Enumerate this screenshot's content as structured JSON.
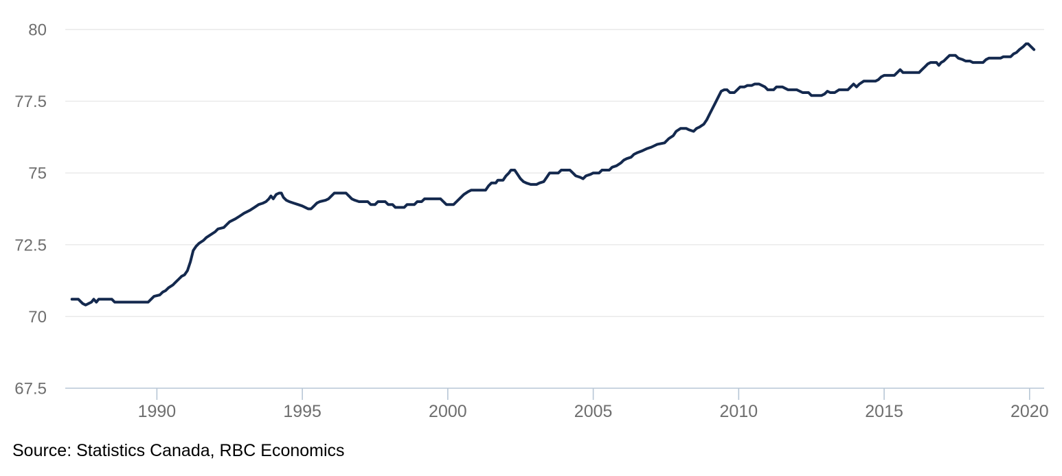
{
  "source_note": "Source: Statistics Canada, RBC Economics",
  "chart_data": {
    "type": "line",
    "title": "",
    "xlabel": "",
    "ylabel": "",
    "grid": true,
    "legend": "none",
    "xlim": [
      1986.85,
      2020.5
    ],
    "ylim": [
      67.5,
      80
    ],
    "x_tick_values": [
      1990,
      1995,
      2000,
      2005,
      2010,
      2015,
      2020
    ],
    "x_tick_labels": [
      "1990",
      "1995",
      "2000",
      "2005",
      "2010",
      "2015",
      "2020"
    ],
    "y_tick_values": [
      67.5,
      70,
      72.5,
      75,
      77.5,
      80
    ],
    "y_tick_labels": [
      "67.5",
      "70",
      "72.5",
      "75",
      "77.5",
      "80"
    ],
    "colors": {
      "line": "#14294E",
      "grid": "#E8E8E8",
      "axis": "#B7C6D5",
      "tick_text": "#6E6E6E",
      "source_text": "#000000"
    },
    "series": [
      {
        "name": "series-1",
        "points": [
          [
            1987.08,
            70.6
          ],
          [
            1987.3,
            70.6
          ],
          [
            1987.45,
            70.45
          ],
          [
            1987.55,
            70.4
          ],
          [
            1987.65,
            70.45
          ],
          [
            1987.75,
            70.5
          ],
          [
            1987.83,
            70.6
          ],
          [
            1987.92,
            70.5
          ],
          [
            1988.0,
            70.6
          ],
          [
            1988.45,
            70.6
          ],
          [
            1988.55,
            70.5
          ],
          [
            1989.7,
            70.5
          ],
          [
            1989.8,
            70.6
          ],
          [
            1989.9,
            70.7
          ],
          [
            1990.1,
            70.75
          ],
          [
            1990.2,
            70.85
          ],
          [
            1990.3,
            70.9
          ],
          [
            1990.4,
            71.0
          ],
          [
            1990.55,
            71.1
          ],
          [
            1990.65,
            71.2
          ],
          [
            1990.75,
            71.3
          ],
          [
            1990.85,
            71.4
          ],
          [
            1990.95,
            71.45
          ],
          [
            1991.05,
            71.6
          ],
          [
            1991.15,
            71.9
          ],
          [
            1991.25,
            72.3
          ],
          [
            1991.35,
            72.45
          ],
          [
            1991.45,
            72.55
          ],
          [
            1991.6,
            72.65
          ],
          [
            1991.7,
            72.75
          ],
          [
            1991.85,
            72.85
          ],
          [
            1992.0,
            72.95
          ],
          [
            1992.1,
            73.05
          ],
          [
            1992.3,
            73.1
          ],
          [
            1992.4,
            73.2
          ],
          [
            1992.5,
            73.3
          ],
          [
            1992.6,
            73.35
          ],
          [
            1992.7,
            73.4
          ],
          [
            1992.85,
            73.5
          ],
          [
            1993.0,
            73.6
          ],
          [
            1993.1,
            73.65
          ],
          [
            1993.2,
            73.7
          ],
          [
            1993.35,
            73.8
          ],
          [
            1993.5,
            73.9
          ],
          [
            1993.65,
            73.95
          ],
          [
            1993.75,
            74.0
          ],
          [
            1993.85,
            74.1
          ],
          [
            1993.92,
            74.2
          ],
          [
            1994.0,
            74.1
          ],
          [
            1994.1,
            74.25
          ],
          [
            1994.2,
            74.3
          ],
          [
            1994.28,
            74.3
          ],
          [
            1994.35,
            74.15
          ],
          [
            1994.45,
            74.05
          ],
          [
            1994.55,
            74.0
          ],
          [
            1994.7,
            73.95
          ],
          [
            1994.85,
            73.9
          ],
          [
            1995.0,
            73.85
          ],
          [
            1995.1,
            73.8
          ],
          [
            1995.2,
            73.75
          ],
          [
            1995.3,
            73.75
          ],
          [
            1995.4,
            73.85
          ],
          [
            1995.5,
            73.95
          ],
          [
            1995.6,
            74.0
          ],
          [
            1995.8,
            74.05
          ],
          [
            1995.9,
            74.1
          ],
          [
            1996.0,
            74.2
          ],
          [
            1996.1,
            74.3
          ],
          [
            1996.5,
            74.3
          ],
          [
            1996.6,
            74.2
          ],
          [
            1996.7,
            74.1
          ],
          [
            1996.8,
            74.05
          ],
          [
            1996.95,
            74.0
          ],
          [
            1997.25,
            74.0
          ],
          [
            1997.35,
            73.9
          ],
          [
            1997.5,
            73.9
          ],
          [
            1997.6,
            74.0
          ],
          [
            1997.85,
            74.0
          ],
          [
            1997.95,
            73.9
          ],
          [
            1998.1,
            73.9
          ],
          [
            1998.2,
            73.8
          ],
          [
            1998.5,
            73.8
          ],
          [
            1998.6,
            73.9
          ],
          [
            1998.85,
            73.9
          ],
          [
            1998.95,
            74.0
          ],
          [
            1999.1,
            74.0
          ],
          [
            1999.2,
            74.1
          ],
          [
            1999.75,
            74.1
          ],
          [
            1999.85,
            74.0
          ],
          [
            1999.95,
            73.9
          ],
          [
            2000.2,
            73.9
          ],
          [
            2000.3,
            74.0
          ],
          [
            2000.45,
            74.15
          ],
          [
            2000.55,
            74.25
          ],
          [
            2000.7,
            74.35
          ],
          [
            2000.8,
            74.4
          ],
          [
            2001.3,
            74.4
          ],
          [
            2001.4,
            74.55
          ],
          [
            2001.5,
            74.65
          ],
          [
            2001.65,
            74.65
          ],
          [
            2001.72,
            74.75
          ],
          [
            2001.9,
            74.75
          ],
          [
            2002.0,
            74.9
          ],
          [
            2002.1,
            75.0
          ],
          [
            2002.17,
            75.1
          ],
          [
            2002.3,
            75.1
          ],
          [
            2002.4,
            74.95
          ],
          [
            2002.5,
            74.8
          ],
          [
            2002.6,
            74.7
          ],
          [
            2002.7,
            74.65
          ],
          [
            2002.85,
            74.6
          ],
          [
            2003.05,
            74.6
          ],
          [
            2003.15,
            74.65
          ],
          [
            2003.3,
            74.7
          ],
          [
            2003.4,
            74.85
          ],
          [
            2003.5,
            75.0
          ],
          [
            2003.8,
            75.0
          ],
          [
            2003.9,
            75.1
          ],
          [
            2004.2,
            75.1
          ],
          [
            2004.3,
            75.0
          ],
          [
            2004.4,
            74.9
          ],
          [
            2004.55,
            74.85
          ],
          [
            2004.65,
            74.8
          ],
          [
            2004.75,
            74.9
          ],
          [
            2004.9,
            74.95
          ],
          [
            2005.0,
            75.0
          ],
          [
            2005.2,
            75.0
          ],
          [
            2005.3,
            75.1
          ],
          [
            2005.55,
            75.1
          ],
          [
            2005.65,
            75.2
          ],
          [
            2005.8,
            75.25
          ],
          [
            2005.95,
            75.35
          ],
          [
            2006.05,
            75.45
          ],
          [
            2006.15,
            75.5
          ],
          [
            2006.3,
            75.55
          ],
          [
            2006.4,
            75.65
          ],
          [
            2006.5,
            75.7
          ],
          [
            2006.7,
            75.78
          ],
          [
            2006.85,
            75.85
          ],
          [
            2007.0,
            75.9
          ],
          [
            2007.1,
            75.95
          ],
          [
            2007.2,
            76.0
          ],
          [
            2007.45,
            76.05
          ],
          [
            2007.6,
            76.2
          ],
          [
            2007.75,
            76.3
          ],
          [
            2007.85,
            76.45
          ],
          [
            2008.0,
            76.55
          ],
          [
            2008.2,
            76.55
          ],
          [
            2008.3,
            76.5
          ],
          [
            2008.45,
            76.45
          ],
          [
            2008.55,
            76.55
          ],
          [
            2008.65,
            76.6
          ],
          [
            2008.8,
            76.7
          ],
          [
            2008.9,
            76.85
          ],
          [
            2009.0,
            77.05
          ],
          [
            2009.1,
            77.25
          ],
          [
            2009.2,
            77.45
          ],
          [
            2009.3,
            77.65
          ],
          [
            2009.4,
            77.85
          ],
          [
            2009.5,
            77.9
          ],
          [
            2009.6,
            77.9
          ],
          [
            2009.7,
            77.8
          ],
          [
            2009.85,
            77.8
          ],
          [
            2009.95,
            77.9
          ],
          [
            2010.05,
            78.0
          ],
          [
            2010.2,
            78.0
          ],
          [
            2010.3,
            78.05
          ],
          [
            2010.45,
            78.05
          ],
          [
            2010.55,
            78.1
          ],
          [
            2010.7,
            78.1
          ],
          [
            2010.8,
            78.05
          ],
          [
            2010.9,
            78.0
          ],
          [
            2011.0,
            77.9
          ],
          [
            2011.2,
            77.9
          ],
          [
            2011.3,
            78.0
          ],
          [
            2011.5,
            78.0
          ],
          [
            2011.6,
            77.95
          ],
          [
            2011.7,
            77.9
          ],
          [
            2012.0,
            77.9
          ],
          [
            2012.1,
            77.85
          ],
          [
            2012.2,
            77.8
          ],
          [
            2012.4,
            77.8
          ],
          [
            2012.5,
            77.7
          ],
          [
            2012.85,
            77.7
          ],
          [
            2012.95,
            77.75
          ],
          [
            2013.05,
            77.85
          ],
          [
            2013.15,
            77.8
          ],
          [
            2013.3,
            77.8
          ],
          [
            2013.45,
            77.9
          ],
          [
            2013.75,
            77.9
          ],
          [
            2013.85,
            78.0
          ],
          [
            2013.95,
            78.1
          ],
          [
            2014.05,
            78.0
          ],
          [
            2014.15,
            78.1
          ],
          [
            2014.3,
            78.2
          ],
          [
            2014.7,
            78.2
          ],
          [
            2014.8,
            78.25
          ],
          [
            2014.9,
            78.35
          ],
          [
            2015.0,
            78.4
          ],
          [
            2015.35,
            78.4
          ],
          [
            2015.45,
            78.5
          ],
          [
            2015.55,
            78.6
          ],
          [
            2015.65,
            78.5
          ],
          [
            2016.2,
            78.5
          ],
          [
            2016.3,
            78.6
          ],
          [
            2016.4,
            78.7
          ],
          [
            2016.5,
            78.8
          ],
          [
            2016.6,
            78.85
          ],
          [
            2016.8,
            78.85
          ],
          [
            2016.88,
            78.75
          ],
          [
            2016.96,
            78.85
          ],
          [
            2017.05,
            78.9
          ],
          [
            2017.15,
            79.0
          ],
          [
            2017.25,
            79.1
          ],
          [
            2017.45,
            79.1
          ],
          [
            2017.55,
            79.0
          ],
          [
            2017.7,
            78.95
          ],
          [
            2017.8,
            78.9
          ],
          [
            2017.95,
            78.9
          ],
          [
            2018.05,
            78.85
          ],
          [
            2018.4,
            78.85
          ],
          [
            2018.5,
            78.95
          ],
          [
            2018.6,
            79.0
          ],
          [
            2019.0,
            79.0
          ],
          [
            2019.1,
            79.05
          ],
          [
            2019.35,
            79.05
          ],
          [
            2019.45,
            79.15
          ],
          [
            2019.55,
            79.2
          ],
          [
            2019.65,
            79.3
          ],
          [
            2019.78,
            79.4
          ],
          [
            2019.88,
            79.5
          ],
          [
            2019.95,
            79.5
          ],
          [
            2020.05,
            79.4
          ],
          [
            2020.15,
            79.3
          ]
        ]
      }
    ]
  }
}
